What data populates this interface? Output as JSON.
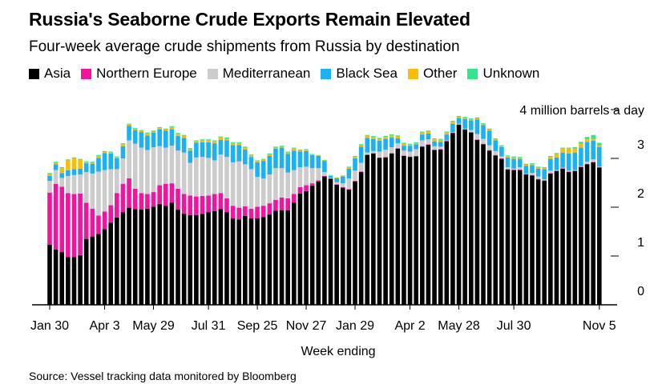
{
  "title": "Russia's Seaborne Crude Exports Remain Elevated",
  "subtitle": "Four-week average crude shipments from Russia by destination",
  "source": "Source: Vessel tracking data monitored by Bloomberg",
  "chart_data": {
    "type": "bar",
    "stacked": true,
    "title": "Russia's Seaborne Crude Exports Remain Elevated",
    "subtitle": "Four-week average crude shipments from Russia by destination",
    "xlabel": "Week ending",
    "ylabel": "4 million barrels a day",
    "ylim": [
      0,
      4
    ],
    "yticks": [
      "0",
      "1",
      "2",
      "3"
    ],
    "x_tick_labels": [
      "Jan 30",
      "Apr 3",
      "May 29",
      "Jul 31",
      "Sep 25",
      "Nov 27",
      "Jan 29",
      "Apr 2",
      "May 28",
      "Jul 30",
      "Nov 5"
    ],
    "x_tick_index": [
      0,
      9,
      17,
      26,
      34,
      42,
      50,
      59,
      67,
      76,
      90
    ],
    "legend_position": "top",
    "colors": {
      "Asia": "#000000",
      "Northern Europe": "#f0149e",
      "Mediterranean": "#cccccc",
      "Black Sea": "#1ab2f5",
      "Other": "#fbbd06",
      "Unknown": "#33e689"
    },
    "series": [
      {
        "name": "Asia",
        "values": [
          1.23,
          1.13,
          1.08,
          0.98,
          0.98,
          1.02,
          1.35,
          1.4,
          1.45,
          1.55,
          1.68,
          1.79,
          1.9,
          1.99,
          1.96,
          1.95,
          1.97,
          2.01,
          2.07,
          2.03,
          2.09,
          1.95,
          1.87,
          1.84,
          1.84,
          1.86,
          1.9,
          1.92,
          1.96,
          1.9,
          1.77,
          1.75,
          1.82,
          1.77,
          1.77,
          1.8,
          1.85,
          1.93,
          1.94,
          1.94,
          2.09,
          2.28,
          2.33,
          2.44,
          2.53,
          2.63,
          2.58,
          2.46,
          2.4,
          2.36,
          2.53,
          2.72,
          3.07,
          3.1,
          3.01,
          3.02,
          3.1,
          3.2,
          3.05,
          3.03,
          3.04,
          3.24,
          3.28,
          3.17,
          3.18,
          3.35,
          3.52,
          3.69,
          3.59,
          3.53,
          3.38,
          3.29,
          3.16,
          3.06,
          2.99,
          2.77,
          2.76,
          2.76,
          2.67,
          2.65,
          2.57,
          2.54,
          2.69,
          2.74,
          2.79,
          2.72,
          2.74,
          2.82,
          2.88,
          2.92,
          2.81
        ]
      },
      {
        "name": "Northern Europe",
        "values": [
          1.07,
          1.35,
          1.34,
          1.31,
          1.29,
          1.26,
          0.74,
          0.57,
          0.38,
          0.36,
          0.36,
          0.5,
          0.58,
          0.6,
          0.42,
          0.34,
          0.3,
          0.3,
          0.38,
          0.45,
          0.4,
          0.43,
          0.4,
          0.4,
          0.38,
          0.37,
          0.34,
          0.35,
          0.33,
          0.28,
          0.26,
          0.24,
          0.2,
          0.2,
          0.24,
          0.23,
          0.23,
          0.22,
          0.26,
          0.24,
          0.18,
          0.13,
          0.12,
          0.05,
          0.02,
          0.01,
          0.01,
          0.01,
          0.01,
          0.01,
          0.01,
          0.01,
          0.01,
          0.01,
          0.01,
          0.01,
          0.01,
          0.01,
          0.01,
          0.01,
          0.01,
          0.01,
          0.01,
          0.01,
          0.01,
          0.01,
          0.01,
          0.01,
          0.01,
          0.01,
          0.01,
          0.01,
          0.01,
          0.01,
          0.01,
          0.01,
          0.01,
          0.01,
          0.01,
          0.01,
          0.01,
          0.01,
          0.01,
          0.01,
          0.01,
          0.01,
          0.01,
          0.01,
          0.01,
          0.01,
          0.01
        ]
      },
      {
        "name": "Mediterranean",
        "values": [
          0.24,
          0.28,
          0.18,
          0.35,
          0.39,
          0.39,
          0.63,
          0.72,
          0.9,
          0.85,
          0.74,
          0.49,
          0.52,
          0.78,
          0.92,
          0.93,
          0.9,
          0.92,
          0.8,
          0.74,
          0.77,
          0.78,
          0.85,
          0.67,
          0.8,
          0.8,
          0.77,
          0.69,
          0.79,
          0.85,
          0.89,
          0.95,
          0.86,
          0.81,
          0.61,
          0.56,
          0.59,
          0.65,
          0.6,
          0.53,
          0.49,
          0.41,
          0.38,
          0.31,
          0.25,
          0.08,
          0.01,
          0.04,
          0.08,
          0.22,
          0.21,
          0.18,
          0.04,
          0.04,
          0.12,
          0.15,
          0.12,
          0.1,
          0.1,
          0.1,
          0.14,
          0.12,
          0.1,
          0.07,
          0.05,
          0.01,
          0.01,
          0.01,
          0.01,
          0.04,
          0.11,
          0.1,
          0.1,
          0.08,
          0.04,
          0.04,
          0.02,
          0.05,
          0.01,
          0.04,
          0.05,
          0.02,
          0.05,
          0.01,
          0.01,
          0.02,
          0.01,
          0.01,
          0.04,
          0.05,
          0.01
        ]
      },
      {
        "name": "Black Sea",
        "values": [
          0.1,
          0.12,
          0.1,
          0.12,
          0.12,
          0.12,
          0.18,
          0.2,
          0.28,
          0.35,
          0.32,
          0.22,
          0.25,
          0.3,
          0.28,
          0.32,
          0.3,
          0.3,
          0.35,
          0.35,
          0.34,
          0.3,
          0.3,
          0.25,
          0.3,
          0.3,
          0.32,
          0.35,
          0.3,
          0.34,
          0.35,
          0.33,
          0.3,
          0.25,
          0.3,
          0.36,
          0.38,
          0.4,
          0.42,
          0.38,
          0.4,
          0.32,
          0.32,
          0.27,
          0.25,
          0.23,
          0.04,
          0.08,
          0.14,
          0.2,
          0.25,
          0.33,
          0.3,
          0.25,
          0.22,
          0.22,
          0.2,
          0.1,
          0.1,
          0.12,
          0.1,
          0.12,
          0.12,
          0.1,
          0.1,
          0.12,
          0.17,
          0.12,
          0.2,
          0.2,
          0.3,
          0.28,
          0.3,
          0.22,
          0.19,
          0.2,
          0.2,
          0.17,
          0.16,
          0.16,
          0.16,
          0.21,
          0.24,
          0.26,
          0.31,
          0.35,
          0.36,
          0.38,
          0.41,
          0.38,
          0.4
        ]
      },
      {
        "name": "Other",
        "values": [
          0.04,
          0.03,
          0.1,
          0.2,
          0.22,
          0.18,
          0.02,
          0.02,
          0.04,
          0.02,
          0.02,
          0.02,
          0.04,
          0.02,
          0.02,
          0.02,
          0.04,
          0.02,
          0.02,
          0.02,
          0.04,
          0.04,
          0.04,
          0.03,
          0.03,
          0.04,
          0.04,
          0.04,
          0.05,
          0.04,
          0.04,
          0.04,
          0.04,
          0.03,
          0.02,
          0.02,
          0.03,
          0.02,
          0.02,
          0.03,
          0.04,
          0.02,
          0.02,
          0.01,
          0.01,
          0.01,
          0.01,
          0.01,
          0.01,
          0.02,
          0.03,
          0.03,
          0.04,
          0.04,
          0.04,
          0.04,
          0.04,
          0.04,
          0.04,
          0.02,
          0.02,
          0.04,
          0.04,
          0.04,
          0.04,
          0.04,
          0.04,
          0.02,
          0.02,
          0.02,
          0.02,
          0.02,
          0.02,
          0.02,
          0.02,
          0.02,
          0.03,
          0.02,
          0.02,
          0.02,
          0.02,
          0.02,
          0.04,
          0.07,
          0.08,
          0.1,
          0.08,
          0.08,
          0.05,
          0.04,
          0.04
        ]
      },
      {
        "name": "Unknown",
        "values": [
          0.02,
          0.02,
          0.02,
          0.02,
          0.02,
          0.02,
          0.02,
          0.02,
          0.02,
          0.02,
          0.02,
          0.02,
          0.02,
          0.02,
          0.02,
          0.02,
          0.02,
          0.02,
          0.02,
          0.02,
          0.02,
          0.02,
          0.02,
          0.02,
          0.02,
          0.02,
          0.02,
          0.02,
          0.02,
          0.02,
          0.02,
          0.02,
          0.02,
          0.02,
          0.02,
          0.02,
          0.02,
          0.02,
          0.02,
          0.02,
          0.02,
          0.02,
          0.02,
          0.01,
          0.01,
          0.01,
          0.01,
          0.01,
          0.01,
          0.02,
          0.02,
          0.02,
          0.02,
          0.02,
          0.02,
          0.02,
          0.02,
          0.02,
          0.02,
          0.02,
          0.02,
          0.02,
          0.02,
          0.02,
          0.02,
          0.02,
          0.02,
          0.02,
          0.02,
          0.02,
          0.02,
          0.02,
          0.02,
          0.02,
          0.02,
          0.02,
          0.02,
          0.02,
          0.02,
          0.02,
          0.02,
          0.02,
          0.02,
          0.02,
          0.02,
          0.02,
          0.03,
          0.04,
          0.05,
          0.08,
          0.05
        ]
      }
    ]
  }
}
